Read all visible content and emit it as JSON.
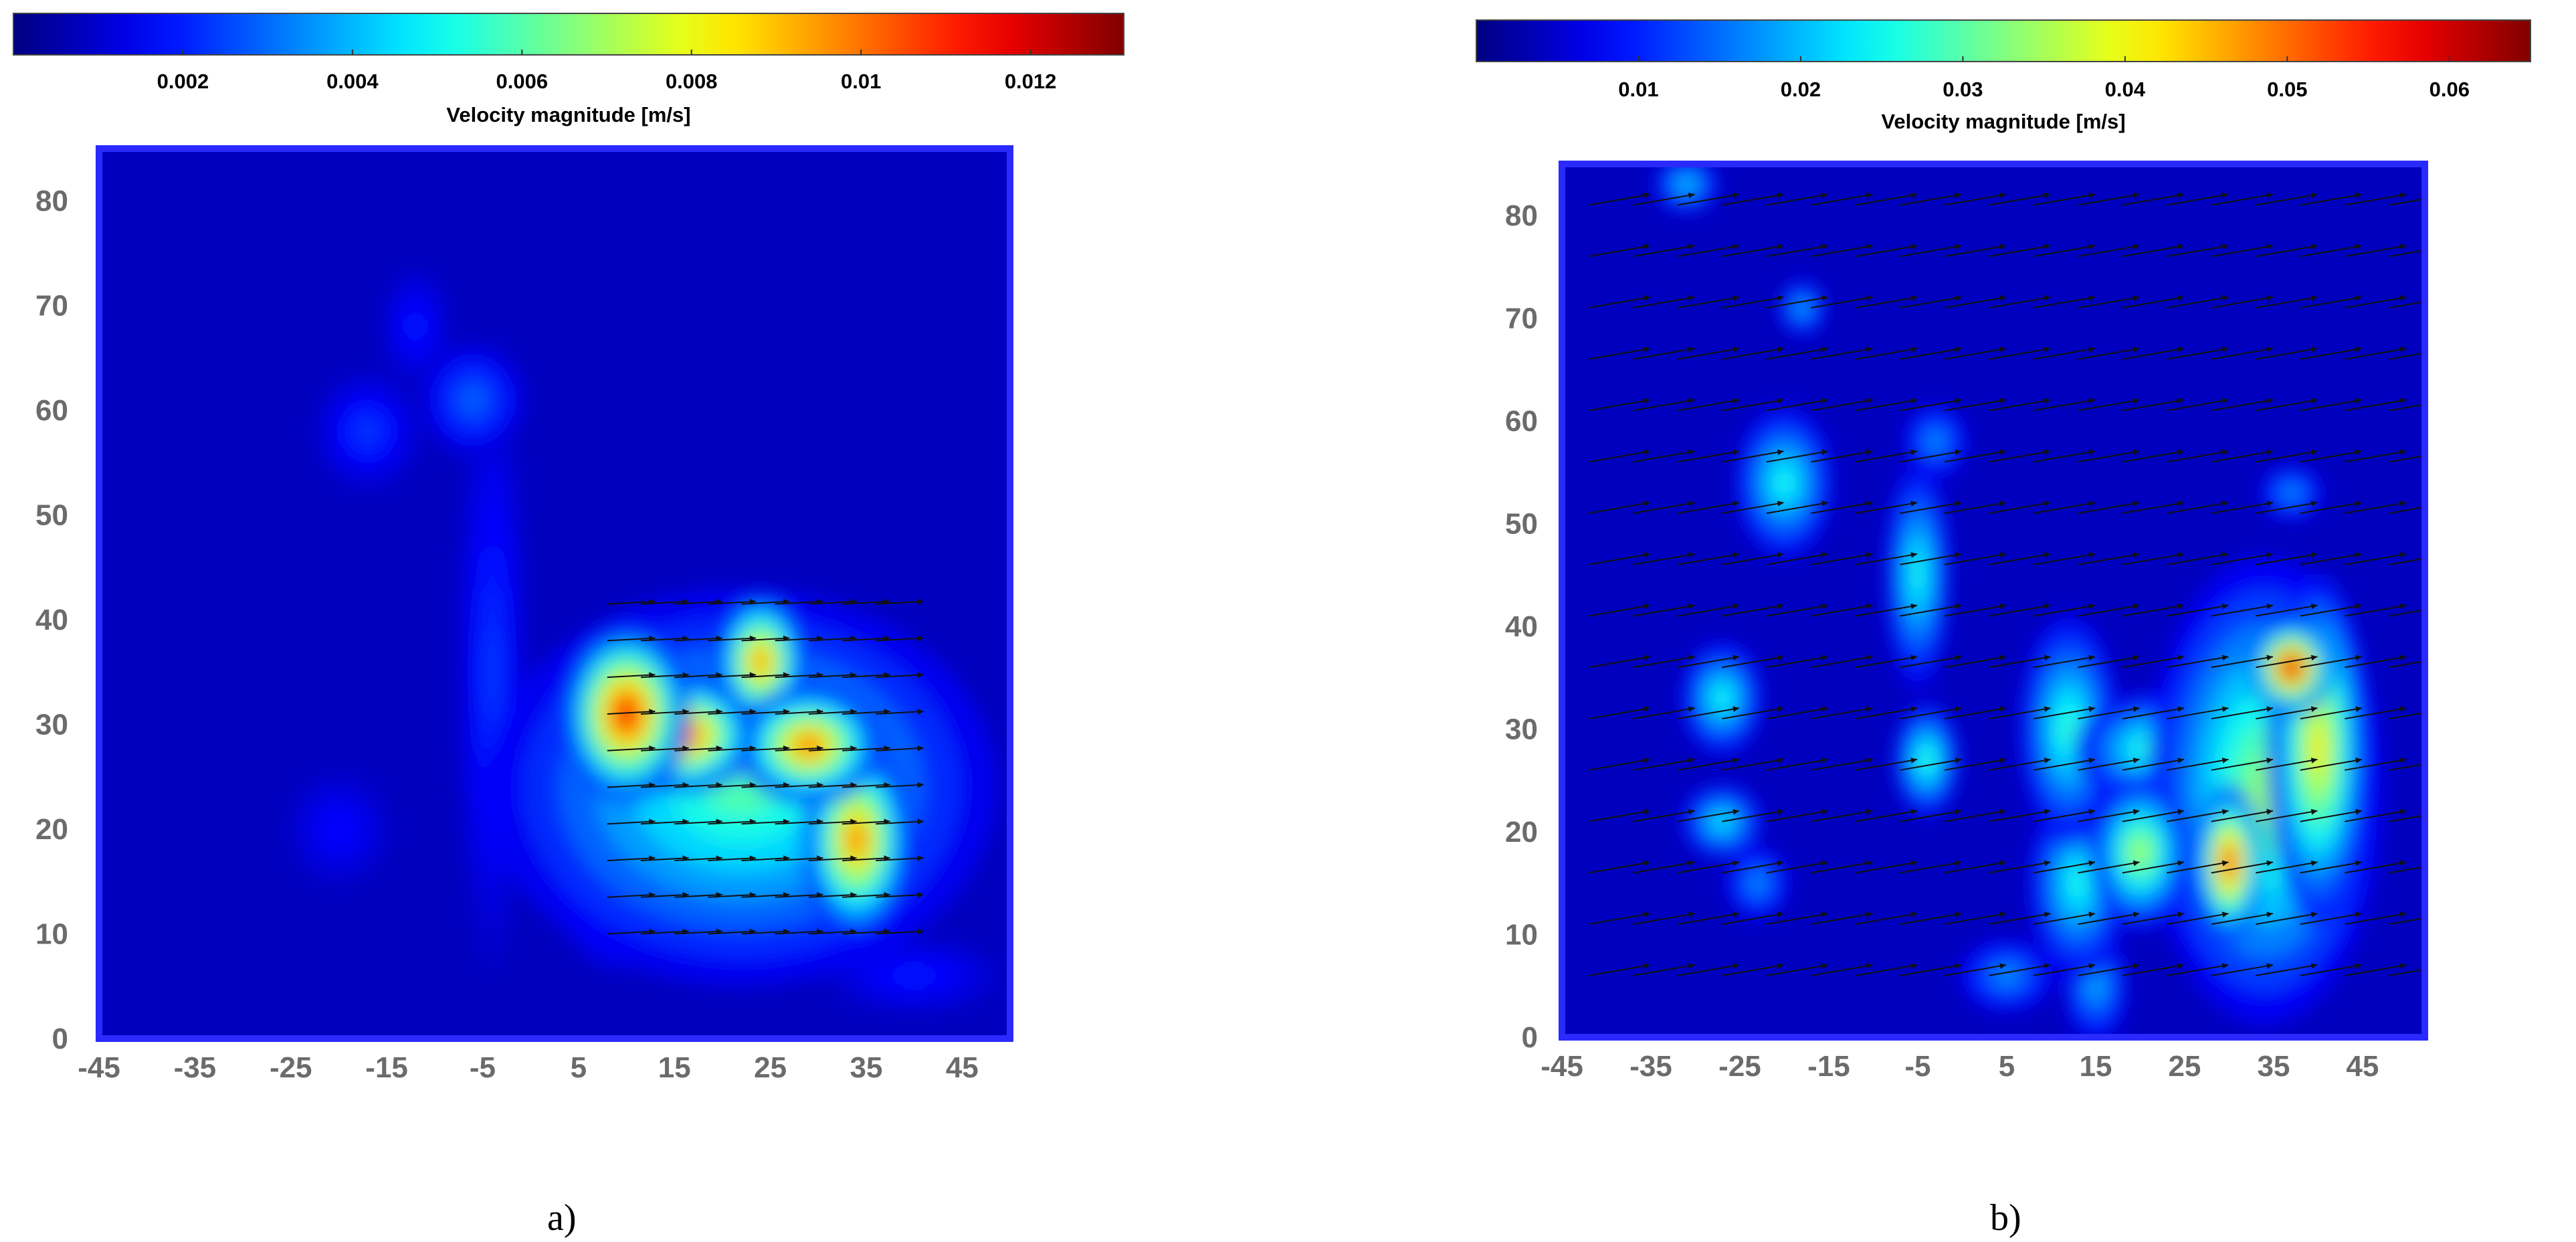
{
  "chart_data": [
    {
      "type": "heatmap",
      "id": "a",
      "caption": "a)",
      "colorbar": {
        "label": "Velocity magnitude [m/s]",
        "ticks": [
          "0.002",
          "0.004",
          "0.006",
          "0.008",
          "0.01",
          "0.012"
        ],
        "tick_values": [
          0.002,
          0.004,
          0.006,
          0.008,
          0.01,
          0.012
        ],
        "range": [
          0.0,
          0.0131
        ],
        "colormap": "jet"
      },
      "xticks": [
        "-45",
        "-35",
        "-25",
        "-15",
        "-5",
        "5",
        "15",
        "25",
        "35",
        "45"
      ],
      "yticks": [
        "0",
        "10",
        "20",
        "30",
        "40",
        "50",
        "60",
        "70",
        "80"
      ],
      "xlim": [
        -45,
        50
      ],
      "ylim": [
        0,
        85
      ],
      "frame_color": "#2a2aff",
      "background_value": 0.0008,
      "hotspots": [
        {
          "x": 10,
          "y": 31,
          "sx": 3.5,
          "sy": 4.5,
          "v": 0.0115
        },
        {
          "x": 16,
          "y": 29,
          "sx": 4,
          "sy": 3,
          "v": 0.0108
        },
        {
          "x": 24,
          "y": 36,
          "sx": 2.5,
          "sy": 3.5,
          "v": 0.0098
        },
        {
          "x": 29,
          "y": 28,
          "sx": 4,
          "sy": 3,
          "v": 0.0102
        },
        {
          "x": 34,
          "y": 19,
          "sx": 3,
          "sy": 5,
          "v": 0.01
        },
        {
          "x": 22,
          "y": 24,
          "sx": 14,
          "sy": 10,
          "v": 0.006
        },
        {
          "x": 9,
          "y": 20,
          "sx": 4,
          "sy": 7,
          "v": 0.005
        },
        {
          "x": 24,
          "y": 14,
          "sx": 9,
          "sy": 4,
          "v": 0.004
        },
        {
          "x": -6,
          "y": 61,
          "sx": 3,
          "sy": 3,
          "v": 0.003
        },
        {
          "x": -17,
          "y": 58,
          "sx": 3,
          "sy": 3,
          "v": 0.0024
        },
        {
          "x": -4,
          "y": 35,
          "sx": 2,
          "sy": 15,
          "v": 0.0024
        },
        {
          "x": -12,
          "y": 68,
          "sx": 2,
          "sy": 3,
          "v": 0.002
        },
        {
          "x": -20,
          "y": 20,
          "sx": 3,
          "sy": 3,
          "v": 0.0018
        },
        {
          "x": 40,
          "y": 6,
          "sx": 5,
          "sy": 2,
          "v": 0.002
        }
      ],
      "vectors": {
        "x_from": 8,
        "x_to": 39,
        "x_step": 3.5,
        "y_from": 10,
        "y_to": 42,
        "y_step": 3.5,
        "u": 1,
        "v": 0.05,
        "length": 5
      }
    },
    {
      "type": "heatmap",
      "id": "b",
      "caption": "b)",
      "colorbar": {
        "label": "Velocity magnitude [m/s]",
        "ticks": [
          "0.01",
          "0.02",
          "0.03",
          "0.04",
          "0.05",
          "0.06"
        ],
        "tick_values": [
          0.01,
          0.02,
          0.03,
          0.04,
          0.05,
          0.06
        ],
        "range": [
          0.0,
          0.065
        ],
        "colormap": "jet"
      },
      "xticks": [
        "-45",
        "-35",
        "-25",
        "-15",
        "-5",
        "5",
        "15",
        "25",
        "35",
        "45"
      ],
      "yticks": [
        "0",
        "10",
        "20",
        "30",
        "40",
        "50",
        "60",
        "70",
        "80"
      ],
      "xlim": [
        -45,
        52
      ],
      "ylim": [
        0,
        85
      ],
      "frame_color": "#2a2aff",
      "background_value": 0.004,
      "hotspots": [
        {
          "x": 37,
          "y": 36,
          "sx": 2.5,
          "sy": 2.5,
          "v": 0.06
        },
        {
          "x": 30,
          "y": 17,
          "sx": 2,
          "sy": 4,
          "v": 0.055
        },
        {
          "x": 40,
          "y": 28,
          "sx": 3,
          "sy": 9,
          "v": 0.042
        },
        {
          "x": 34,
          "y": 24,
          "sx": 7,
          "sy": 12,
          "v": 0.034
        },
        {
          "x": 20,
          "y": 18,
          "sx": 3,
          "sy": 4,
          "v": 0.036
        },
        {
          "x": 22,
          "y": 28,
          "sx": 5,
          "sy": 3,
          "v": 0.03
        },
        {
          "x": 12,
          "y": 30,
          "sx": 3,
          "sy": 6,
          "v": 0.028
        },
        {
          "x": 13,
          "y": 15,
          "sx": 3,
          "sy": 5,
          "v": 0.026
        },
        {
          "x": -5,
          "y": 45,
          "sx": 2,
          "sy": 6,
          "v": 0.026
        },
        {
          "x": -4,
          "y": 27,
          "sx": 2,
          "sy": 3,
          "v": 0.028
        },
        {
          "x": -27,
          "y": 33,
          "sx": 2.5,
          "sy": 3,
          "v": 0.026
        },
        {
          "x": -27,
          "y": 21,
          "sx": 2.5,
          "sy": 2,
          "v": 0.024
        },
        {
          "x": -20,
          "y": 54,
          "sx": 3,
          "sy": 4,
          "v": 0.026
        },
        {
          "x": -31,
          "y": 83,
          "sx": 2,
          "sy": 1.5,
          "v": 0.022
        },
        {
          "x": -18,
          "y": 71,
          "sx": 1.5,
          "sy": 1.5,
          "v": 0.02
        },
        {
          "x": 15,
          "y": 5,
          "sx": 2,
          "sy": 3,
          "v": 0.02
        },
        {
          "x": 5,
          "y": 6,
          "sx": 3,
          "sy": 2,
          "v": 0.018
        },
        {
          "x": -3,
          "y": 58,
          "sx": 2,
          "sy": 2,
          "v": 0.018
        },
        {
          "x": 37,
          "y": 53,
          "sx": 2,
          "sy": 1.5,
          "v": 0.018
        },
        {
          "x": -23,
          "y": 15,
          "sx": 2,
          "sy": 2,
          "v": 0.018
        }
      ],
      "vectors": {
        "x_from": -42,
        "x_to": 50,
        "x_step": 5,
        "y_from": 6,
        "y_to": 82,
        "y_step": 5,
        "u": 1,
        "v": 0.15,
        "length": 7
      }
    }
  ]
}
